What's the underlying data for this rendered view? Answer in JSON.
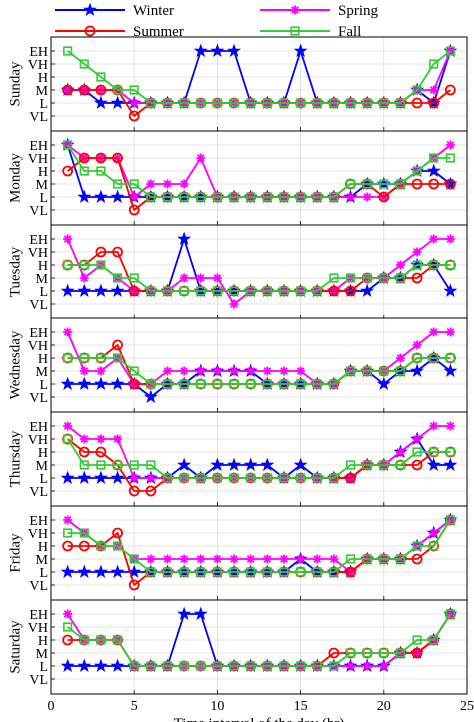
{
  "chart_data": {
    "type": "line",
    "xlabel": "Time interval of the day (hr)",
    "xlim": [
      0,
      25
    ],
    "xticks": [
      0,
      5,
      10,
      15,
      20,
      25
    ],
    "level_labels": [
      "VL",
      "L",
      "M",
      "H",
      "VH",
      "EH"
    ],
    "legend": {
      "placement": "top",
      "columns": 2
    },
    "grid": true,
    "series_styles": [
      {
        "name": "Winter",
        "color": "#0000ff",
        "marker": "star"
      },
      {
        "name": "Spring",
        "color": "#ff00ff",
        "marker": "asterisk"
      },
      {
        "name": "Summer",
        "color": "#ff0000",
        "marker": "circle"
      },
      {
        "name": "Fall",
        "color": "#33cc33",
        "marker": "square"
      }
    ],
    "x": [
      1,
      2,
      3,
      4,
      5,
      6,
      7,
      8,
      9,
      10,
      11,
      12,
      13,
      14,
      15,
      16,
      17,
      18,
      19,
      20,
      21,
      22,
      23,
      24
    ],
    "panels": [
      {
        "day": "Sunday",
        "series": [
          {
            "name": "Winter",
            "values": [
              3,
              3,
              2,
              2,
              2,
              2,
              2,
              2,
              6,
              6,
              6,
              2,
              2,
              2,
              6,
              2,
              2,
              2,
              2,
              2,
              2,
              3,
              2,
              6
            ]
          },
          {
            "name": "Spring",
            "values": [
              3,
              3,
              3,
              3,
              2,
              2,
              2,
              2,
              2,
              2,
              2,
              2,
              2,
              2,
              2,
              2,
              2,
              2,
              2,
              2,
              2,
              3,
              3,
              6
            ]
          },
          {
            "name": "Summer",
            "values": [
              3,
              3,
              3,
              3,
              1,
              2,
              2,
              2,
              2,
              2,
              2,
              2,
              2,
              2,
              2,
              2,
              2,
              2,
              2,
              2,
              2,
              2,
              2,
              3
            ]
          },
          {
            "name": "Fall",
            "values": [
              6,
              5,
              4,
              3,
              3,
              2,
              2,
              2,
              2,
              2,
              2,
              2,
              2,
              2,
              2,
              2,
              2,
              2,
              2,
              2,
              2,
              3,
              5,
              6
            ]
          }
        ]
      },
      {
        "day": "Monday",
        "series": [
          {
            "name": "Winter",
            "values": [
              6,
              2,
              2,
              2,
              2,
              2,
              2,
              2,
              2,
              2,
              2,
              2,
              2,
              2,
              2,
              2,
              2,
              2,
              3,
              3,
              3,
              4,
              4,
              3
            ]
          },
          {
            "name": "Spring",
            "values": [
              6,
              5,
              5,
              5,
              2,
              3,
              3,
              3,
              5,
              2,
              2,
              2,
              2,
              2,
              2,
              2,
              2,
              2,
              2,
              2,
              3,
              4,
              5,
              6
            ]
          },
          {
            "name": "Summer",
            "values": [
              4,
              5,
              5,
              5,
              1,
              2,
              2,
              2,
              2,
              2,
              2,
              2,
              2,
              2,
              2,
              2,
              2,
              3,
              3,
              2,
              3,
              3,
              3,
              3
            ]
          },
          {
            "name": "Fall",
            "values": [
              6,
              4,
              4,
              3,
              3,
              2,
              2,
              2,
              2,
              2,
              2,
              2,
              2,
              2,
              2,
              2,
              2,
              3,
              3,
              3,
              3,
              4,
              5,
              5
            ]
          }
        ]
      },
      {
        "day": "Tuesday",
        "series": [
          {
            "name": "Winter",
            "values": [
              2,
              2,
              2,
              2,
              2,
              2,
              2,
              6,
              2,
              2,
              2,
              2,
              2,
              2,
              2,
              2,
              2,
              2,
              2,
              3,
              3,
              4,
              4,
              2
            ]
          },
          {
            "name": "Spring",
            "values": [
              6,
              3,
              4,
              3,
              2,
              2,
              2,
              3,
              3,
              3,
              1,
              2,
              2,
              2,
              2,
              2,
              2,
              3,
              3,
              3,
              4,
              5,
              6,
              6
            ]
          },
          {
            "name": "Summer",
            "values": [
              4,
              4,
              5,
              5,
              2,
              2,
              2,
              2,
              2,
              2,
              2,
              2,
              2,
              2,
              2,
              2,
              2,
              2,
              3,
              3,
              3,
              3,
              4,
              4
            ]
          },
          {
            "name": "Fall",
            "values": [
              4,
              4,
              4,
              3,
              3,
              2,
              2,
              2,
              2,
              2,
              2,
              2,
              2,
              2,
              2,
              2,
              3,
              3,
              3,
              3,
              3,
              4,
              4,
              4
            ]
          }
        ]
      },
      {
        "day": "Wednesday",
        "series": [
          {
            "name": "Winter",
            "values": [
              2,
              2,
              2,
              2,
              2,
              1,
              2,
              2,
              3,
              3,
              3,
              3,
              2,
              2,
              2,
              2,
              2,
              3,
              3,
              2,
              3,
              3,
              4,
              3
            ]
          },
          {
            "name": "Spring",
            "values": [
              6,
              3,
              3,
              4,
              2,
              2,
              3,
              3,
              3,
              3,
              3,
              3,
              3,
              3,
              3,
              2,
              2,
              3,
              3,
              3,
              4,
              5,
              6,
              6
            ]
          },
          {
            "name": "Summer",
            "values": [
              4,
              4,
              4,
              5,
              2,
              2,
              2,
              2,
              2,
              2,
              2,
              2,
              2,
              2,
              2,
              2,
              2,
              3,
              3,
              3,
              3,
              4,
              4,
              4
            ]
          },
          {
            "name": "Fall",
            "values": [
              4,
              4,
              4,
              4,
              3,
              2,
              2,
              2,
              2,
              2,
              2,
              2,
              2,
              2,
              2,
              2,
              2,
              3,
              3,
              3,
              3,
              4,
              4,
              4
            ]
          }
        ]
      },
      {
        "day": "Thursday",
        "series": [
          {
            "name": "Winter",
            "values": [
              2,
              2,
              2,
              2,
              2,
              2,
              2,
              3,
              2,
              3,
              3,
              3,
              3,
              2,
              3,
              2,
              2,
              2,
              3,
              3,
              4,
              5,
              3,
              3
            ]
          },
          {
            "name": "Spring",
            "values": [
              6,
              5,
              5,
              5,
              2,
              2,
              2,
              2,
              2,
              2,
              2,
              2,
              2,
              2,
              2,
              2,
              2,
              2,
              3,
              3,
              4,
              5,
              6,
              6
            ]
          },
          {
            "name": "Summer",
            "values": [
              5,
              4,
              4,
              3,
              1,
              1,
              2,
              2,
              2,
              2,
              2,
              2,
              2,
              2,
              2,
              2,
              2,
              2,
              3,
              3,
              3,
              3,
              4,
              4
            ]
          },
          {
            "name": "Fall",
            "values": [
              5,
              3,
              3,
              3,
              3,
              3,
              2,
              2,
              2,
              2,
              2,
              2,
              2,
              2,
              2,
              2,
              2,
              3,
              3,
              3,
              3,
              4,
              4,
              4
            ]
          }
        ]
      },
      {
        "day": "Friday",
        "series": [
          {
            "name": "Winter",
            "values": [
              2,
              2,
              2,
              2,
              2,
              2,
              2,
              2,
              2,
              2,
              2,
              2,
              2,
              2,
              3,
              2,
              2,
              2,
              3,
              3,
              3,
              4,
              5,
              6
            ]
          },
          {
            "name": "Spring",
            "values": [
              6,
              5,
              4,
              4,
              3,
              3,
              3,
              3,
              3,
              3,
              3,
              3,
              3,
              3,
              3,
              3,
              3,
              2,
              3,
              3,
              3,
              4,
              5,
              6
            ]
          },
          {
            "name": "Summer",
            "values": [
              4,
              4,
              4,
              5,
              1,
              2,
              2,
              2,
              2,
              2,
              2,
              2,
              2,
              2,
              2,
              2,
              2,
              2,
              3,
              3,
              3,
              3,
              4,
              6
            ]
          },
          {
            "name": "Fall",
            "values": [
              5,
              5,
              4,
              4,
              3,
              2,
              2,
              2,
              2,
              2,
              2,
              2,
              2,
              2,
              2,
              2,
              2,
              3,
              3,
              3,
              3,
              4,
              4,
              6
            ]
          }
        ]
      },
      {
        "day": "Saturday",
        "series": [
          {
            "name": "Winter",
            "values": [
              2,
              2,
              2,
              2,
              2,
              2,
              2,
              6,
              6,
              2,
              2,
              2,
              2,
              2,
              2,
              2,
              2,
              2,
              2,
              2,
              3,
              3,
              4,
              6
            ]
          },
          {
            "name": "Spring",
            "values": [
              6,
              4,
              4,
              4,
              2,
              2,
              2,
              2,
              2,
              2,
              2,
              2,
              2,
              2,
              2,
              2,
              2,
              2,
              2,
              2,
              3,
              3,
              4,
              6
            ]
          },
          {
            "name": "Summer",
            "values": [
              4,
              4,
              4,
              4,
              2,
              2,
              2,
              2,
              2,
              2,
              2,
              2,
              2,
              2,
              2,
              2,
              3,
              3,
              3,
              3,
              3,
              3,
              4,
              6
            ]
          },
          {
            "name": "Fall",
            "values": [
              5,
              4,
              4,
              4,
              2,
              2,
              2,
              2,
              2,
              2,
              2,
              2,
              2,
              2,
              2,
              2,
              2,
              3,
              3,
              3,
              3,
              4,
              4,
              6
            ]
          }
        ]
      }
    ]
  }
}
